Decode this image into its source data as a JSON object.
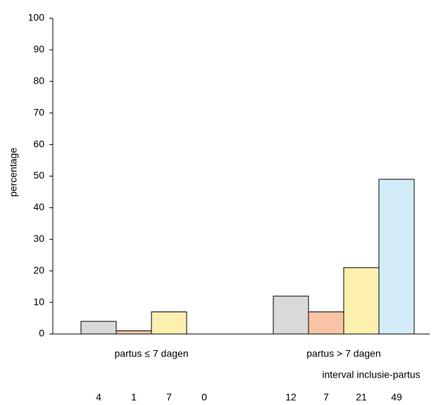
{
  "chart_data": {
    "type": "bar",
    "y_label": "percentage",
    "x_label": "interval inclusie-partus",
    "categories": [
      "partus ≤ 7 dagen",
      "partus > 7 dagen"
    ],
    "series": [
      {
        "color": "#d9d9d9",
        "values": [
          4,
          12
        ]
      },
      {
        "color": "#f9c4a5",
        "values": [
          1,
          7
        ]
      },
      {
        "color": "#fdefb0",
        "values": [
          7,
          21
        ]
      },
      {
        "color": "#d2ecf9",
        "values": [
          0,
          49
        ]
      }
    ],
    "ylim": [
      0,
      100
    ],
    "yticks": [
      0,
      10,
      20,
      30,
      40,
      50,
      60,
      70,
      80,
      90,
      100
    ]
  }
}
